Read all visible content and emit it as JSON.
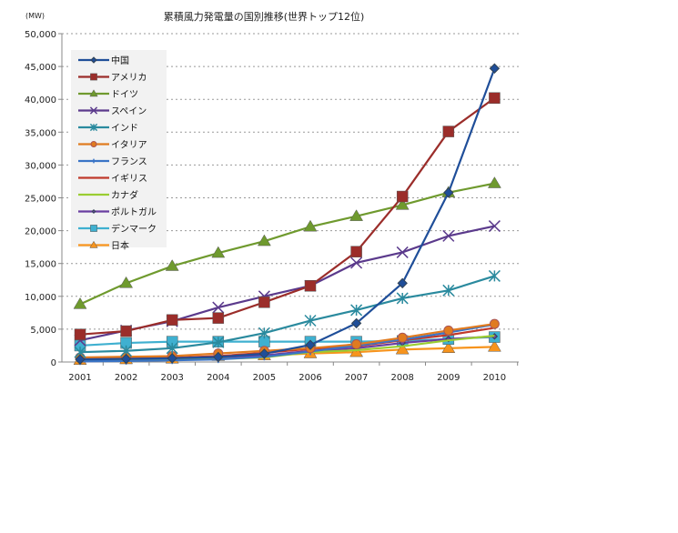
{
  "chart_data": {
    "type": "line",
    "title": "累積風力発電量の国別推移(世界トップ12位)",
    "ylabel": "(MW)",
    "xlabel": "",
    "ylim": [
      0,
      50000
    ],
    "yticks": [
      "0",
      "5,000",
      "10,000",
      "15,000",
      "20,000",
      "25,000",
      "30,000",
      "35,000",
      "40,000",
      "45,000",
      "50,000"
    ],
    "x": [
      "2001",
      "2002",
      "2003",
      "2004",
      "2005",
      "2006",
      "2007",
      "2008",
      "2009",
      "2010"
    ],
    "grid": "horizontal dotted",
    "legend": "top-left",
    "series": [
      {
        "name": "中国",
        "color": "#1f4e99",
        "marker": "diamond",
        "values": [
          400,
          470,
          570,
          760,
          1260,
          2600,
          5900,
          12000,
          25800,
          44700
        ]
      },
      {
        "name": "アメリカ",
        "color": "#9b2d2a",
        "marker": "square",
        "values": [
          4200,
          4700,
          6400,
          6700,
          9100,
          11600,
          16800,
          25200,
          35100,
          40200
        ]
      },
      {
        "name": "ドイツ",
        "color": "#6f9a2e",
        "marker": "triangle",
        "values": [
          8800,
          12000,
          14600,
          16600,
          18400,
          20600,
          22200,
          23900,
          25800,
          27200
        ]
      },
      {
        "name": "スペイン",
        "color": "#5b3a8c",
        "marker": "x",
        "values": [
          3300,
          4800,
          6200,
          8300,
          10000,
          11600,
          15100,
          16700,
          19200,
          20700
        ]
      },
      {
        "name": "インド",
        "color": "#2a8a9e",
        "marker": "asterisk",
        "values": [
          1500,
          1700,
          2100,
          3000,
          4400,
          6300,
          7900,
          9700,
          10900,
          13100
        ]
      },
      {
        "name": "イタリア",
        "color": "#e07b20",
        "marker": "circle",
        "values": [
          700,
          800,
          900,
          1300,
          1700,
          2100,
          2700,
          3700,
          4800,
          5800
        ]
      },
      {
        "name": "フランス",
        "color": "#3a74c6",
        "marker": "plus",
        "values": [
          100,
          150,
          250,
          400,
          800,
          1600,
          2500,
          3400,
          4500,
          5700
        ]
      },
      {
        "name": "イギリス",
        "color": "#c0392b",
        "marker": "none",
        "values": [
          500,
          550,
          650,
          900,
          1400,
          2000,
          2400,
          3300,
          4100,
          5200
        ]
      },
      {
        "name": "カナダ",
        "color": "#9acd32",
        "marker": "none",
        "values": [
          200,
          250,
          350,
          450,
          700,
          1500,
          1800,
          2400,
          3300,
          4000
        ]
      },
      {
        "name": "ポルトガル",
        "color": "#6a3ea1",
        "marker": "smalldiamond",
        "values": [
          100,
          200,
          300,
          500,
          1000,
          1700,
          2100,
          2900,
          3500,
          3900
        ]
      },
      {
        "name": "デンマーク",
        "color": "#3fb0d0",
        "marker": "square",
        "values": [
          2500,
          2900,
          3100,
          3100,
          3100,
          3100,
          3100,
          3200,
          3500,
          3800
        ]
      },
      {
        "name": "日本",
        "color": "#f7941d",
        "marker": "triangle",
        "values": [
          300,
          400,
          500,
          900,
          1000,
          1300,
          1500,
          1900,
          2100,
          2300
        ]
      }
    ]
  }
}
